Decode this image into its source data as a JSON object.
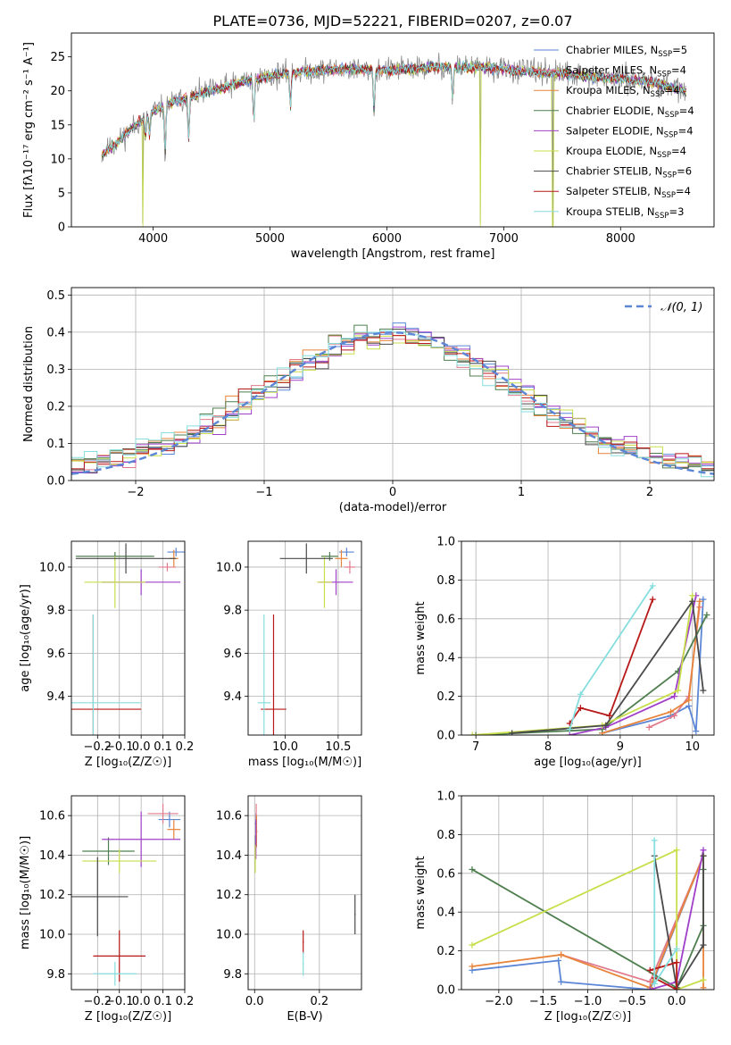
{
  "figure": {
    "title": "PLATE=0736, MJD=52221, FIBERID=0207, z=0.07"
  },
  "colors": {
    "chabrier_miles": "#5b86d6",
    "salpeter_miles": "#e07b8c",
    "kroupa_miles": "#e8843a",
    "chabrier_elodie": "#4f7f4f",
    "salpeter_elodie": "#a040c8",
    "kroupa_elodie": "#c8de4a",
    "chabrier_stelib": "#4a4a4a",
    "salpeter_stelib": "#b81818",
    "kroupa_stelib": "#86dede",
    "normal": "#5b86d6",
    "spectrum": "#8c8c8c"
  },
  "chart_data": [
    {
      "id": "spectrum",
      "type": "line",
      "xlabel": "wavelength [Angstrom, rest frame]",
      "ylabel": "Flux [fλ10⁻¹⁷ erg cm⁻² s⁻¹ A⁻¹]",
      "xlim": [
        3300,
        8800
      ],
      "ylim": [
        0,
        28.5
      ],
      "xticks": [
        4000,
        5000,
        6000,
        7000,
        8000
      ],
      "yticks": [
        0,
        5,
        10,
        15,
        20,
        25
      ],
      "legend_position": "upper right",
      "continuum": [
        [
          3550,
          10.5
        ],
        [
          3700,
          12.5
        ],
        [
          3850,
          15
        ],
        [
          4000,
          17
        ],
        [
          4200,
          18.5
        ],
        [
          4500,
          20
        ],
        [
          4800,
          21.5
        ],
        [
          5100,
          22.5
        ],
        [
          5400,
          23
        ],
        [
          5700,
          23.2
        ],
        [
          6000,
          23
        ],
        [
          6400,
          23.5
        ],
        [
          6800,
          23.5
        ],
        [
          7100,
          23
        ],
        [
          7500,
          22.5
        ],
        [
          7800,
          22
        ],
        [
          8200,
          21.5
        ],
        [
          8560,
          20
        ]
      ],
      "absorption_features": [
        [
          3934,
          3
        ],
        [
          3969,
          3
        ],
        [
          4102,
          7
        ],
        [
          4304,
          6
        ],
        [
          4861,
          6
        ],
        [
          5175,
          5
        ],
        [
          5890,
          6
        ],
        [
          6563,
          5
        ]
      ],
      "spikes": [
        [
          3910,
          0.5
        ],
        [
          6800,
          0.5
        ],
        [
          7420,
          0.2
        ]
      ],
      "series": [
        {
          "name": "Chabrier MILES, N_SSP=5",
          "name_main": "Chabrier MILES, N",
          "name_sub": "SSP",
          "name_tail": "=5",
          "color_key": "chabrier_miles"
        },
        {
          "name": "Salpeter MILES, N_SSP=4",
          "name_main": "Salpeter MILES, N",
          "name_sub": "SSP",
          "name_tail": "=4",
          "color_key": "salpeter_miles"
        },
        {
          "name": "Kroupa MILES, N_SSP=4",
          "name_main": "Kroupa MILES, N",
          "name_sub": "SSP",
          "name_tail": "=4",
          "color_key": "kroupa_miles"
        },
        {
          "name": "Chabrier ELODIE, N_SSP=4",
          "name_main": "Chabrier ELODIE, N",
          "name_sub": "SSP",
          "name_tail": "=4",
          "color_key": "chabrier_elodie"
        },
        {
          "name": "Salpeter ELODIE, N_SSP=4",
          "name_main": "Salpeter ELODIE, N",
          "name_sub": "SSP",
          "name_tail": "=4",
          "color_key": "salpeter_elodie"
        },
        {
          "name": "Kroupa ELODIE, N_SSP=4",
          "name_main": "Kroupa ELODIE, N",
          "name_sub": "SSP",
          "name_tail": "=4",
          "color_key": "kroupa_elodie"
        },
        {
          "name": "Chabrier STELIB, N_SSP=6",
          "name_main": "Chabrier STELIB, N",
          "name_sub": "SSP",
          "name_tail": "=6",
          "color_key": "chabrier_stelib"
        },
        {
          "name": "Salpeter STELIB, N_SSP=4",
          "name_main": "Salpeter STELIB, N",
          "name_sub": "SSP",
          "name_tail": "=4",
          "color_key": "salpeter_stelib"
        },
        {
          "name": "Kroupa STELIB, N_SSP=3",
          "name_main": "Kroupa STELIB, N",
          "name_sub": "SSP",
          "name_tail": "=3",
          "color_key": "kroupa_stelib"
        }
      ]
    },
    {
      "id": "residuals",
      "type": "line",
      "xlabel": "(data-model)/error",
      "ylabel": "Normed distribution",
      "xlim": [
        -2.5,
        2.5
      ],
      "ylim": [
        0,
        0.52
      ],
      "xticks": [
        -2,
        -1,
        0,
        1,
        2
      ],
      "xtick_labels": [
        "−2",
        "−1",
        "0",
        "1",
        "2"
      ],
      "yticks": [
        0,
        0.1,
        0.2,
        0.3,
        0.4,
        0.5
      ],
      "ytick_labels": [
        "0.0",
        "0.1",
        "0.2",
        "0.3",
        "0.4",
        "0.5"
      ],
      "grid": true,
      "legend_position": "upper right",
      "reference_curve": {
        "name": "𝒩(0, 1)",
        "mean": 0,
        "sigma": 1,
        "color_key": "normal"
      },
      "histogram_bin_width": 0.1
    },
    {
      "id": "age-vs-metallicity",
      "type": "scatter",
      "xlabel": "Z [log₁₀(Z/Z☉)]",
      "ylabel": "age  [log₁₀(age/yr)]",
      "xlim": [
        -0.32,
        0.2
      ],
      "ylim": [
        9.22,
        10.12
      ],
      "xticks": [
        -0.2,
        -0.1,
        0.0,
        0.1,
        0.2
      ],
      "xtick_labels": [
        "−0.2",
        "−0.1",
        "0.0",
        "0.1",
        "0.2"
      ],
      "yticks": [
        9.4,
        9.6,
        9.8,
        10.0
      ],
      "ytick_labels": [
        "9.4",
        "9.6",
        "9.8",
        "10.0"
      ],
      "grid": true,
      "points": [
        {
          "series": "chabrier_miles",
          "x": 0.16,
          "xerr": 0.04,
          "y": 10.07,
          "yerr": 0.02
        },
        {
          "series": "salpeter_miles",
          "x": 0.12,
          "xerr": 0.04,
          "y": 10.0,
          "yerr": 0.02
        },
        {
          "series": "kroupa_miles",
          "x": 0.15,
          "xerr": 0.02,
          "y": 10.04,
          "yerr": 0.04
        },
        {
          "series": "chabrier_elodie",
          "x": -0.12,
          "xerr": 0.18,
          "y": 10.05,
          "yerr": 0.02
        },
        {
          "series": "salpeter_elodie",
          "x": 0.0,
          "xerr": 0.18,
          "y": 9.93,
          "yerr": 0.06
        },
        {
          "series": "kroupa_elodie",
          "x": -0.12,
          "xerr": 0.14,
          "y": 9.93,
          "yerr": 0.12
        },
        {
          "series": "chabrier_stelib",
          "x": -0.07,
          "xerr": 0.23,
          "y": 10.04,
          "yerr": 0.07
        },
        {
          "series": "salpeter_stelib",
          "x": -0.22,
          "xerr": 0.22,
          "y": 9.34,
          "yerr": 0.44
        },
        {
          "series": "kroupa_stelib",
          "x": -0.22,
          "xerr": 0.22,
          "y": 9.37,
          "yerr": 0.41
        }
      ]
    },
    {
      "id": "age-vs-mass",
      "type": "scatter",
      "xlabel": "mass [log₁₀(M/M☉)]",
      "xlim": [
        9.65,
        10.72
      ],
      "ylim": [
        9.22,
        10.12
      ],
      "xticks": [
        10.0,
        10.5
      ],
      "xtick_labels": [
        "10.0",
        "10.5"
      ],
      "yticks": [
        9.4,
        9.6,
        9.8,
        10.0
      ],
      "ytick_labels": [
        "9.4",
        "9.6",
        "9.8",
        "10.0"
      ],
      "grid": true,
      "points": [
        {
          "series": "chabrier_miles",
          "x": 10.58,
          "xerr": 0.07,
          "y": 10.07,
          "yerr": 0.02
        },
        {
          "series": "salpeter_miles",
          "x": 10.61,
          "xerr": 0.05,
          "y": 10.0,
          "yerr": 0.03
        },
        {
          "series": "kroupa_miles",
          "x": 10.53,
          "xerr": 0.06,
          "y": 10.04,
          "yerr": 0.04
        },
        {
          "series": "chabrier_elodie",
          "x": 10.42,
          "xerr": 0.08,
          "y": 10.05,
          "yerr": 0.02
        },
        {
          "series": "salpeter_elodie",
          "x": 10.48,
          "xerr": 0.16,
          "y": 9.93,
          "yerr": 0.06
        },
        {
          "series": "kroupa_elodie",
          "x": 10.37,
          "xerr": 0.07,
          "y": 9.93,
          "yerr": 0.12
        },
        {
          "series": "chabrier_stelib",
          "x": 10.2,
          "xerr": 0.25,
          "y": 10.04,
          "yerr": 0.07
        },
        {
          "series": "salpeter_stelib",
          "x": 9.89,
          "xerr": 0.12,
          "y": 9.34,
          "yerr": 0.44
        },
        {
          "series": "kroupa_stelib",
          "x": 9.8,
          "xerr": 0.06,
          "y": 9.37,
          "yerr": 0.41
        }
      ]
    },
    {
      "id": "mass-weight-vs-age",
      "type": "line",
      "xlabel": "age  [log₁₀(age/yr)]",
      "ylabel": "mass weight",
      "xlim": [
        6.8,
        10.3
      ],
      "ylim": [
        0,
        1
      ],
      "xticks": [
        7,
        8,
        9,
        10
      ],
      "yticks": [
        0,
        0.2,
        0.4,
        0.6,
        0.8,
        1.0
      ],
      "ytick_labels": [
        "0.0",
        "0.2",
        "0.4",
        "0.6",
        "0.8",
        "1.0"
      ],
      "grid": true,
      "series": [
        {
          "color_key": "chabrier_miles",
          "x": [
            8.75,
            9.7,
            9.95,
            10.05,
            10.15
          ],
          "y": [
            0.01,
            0.1,
            0.15,
            0.02,
            0.7
          ]
        },
        {
          "color_key": "salpeter_miles",
          "x": [
            9.4,
            9.75,
            9.95,
            10.1
          ],
          "y": [
            0.04,
            0.1,
            0.2,
            0.66
          ]
        },
        {
          "color_key": "kroupa_miles",
          "x": [
            8.75,
            9.7,
            9.95,
            10.1
          ],
          "y": [
            0.01,
            0.12,
            0.18,
            0.69
          ]
        },
        {
          "color_key": "chabrier_elodie",
          "x": [
            7.0,
            8.75,
            9.8,
            10.2
          ],
          "y": [
            0.0,
            0.03,
            0.33,
            0.62
          ]
        },
        {
          "color_key": "salpeter_elodie",
          "x": [
            8.3,
            8.8,
            9.75,
            10.05
          ],
          "y": [
            0.0,
            0.04,
            0.2,
            0.72
          ]
        },
        {
          "color_key": "kroupa_elodie",
          "x": [
            6.95,
            8.75,
            9.8,
            10.0
          ],
          "y": [
            0.0,
            0.05,
            0.23,
            0.72
          ]
        },
        {
          "color_key": "chabrier_stelib",
          "x": [
            7.5,
            8.8,
            10.0,
            10.15
          ],
          "y": [
            0.01,
            0.05,
            0.69,
            0.23
          ]
        },
        {
          "color_key": "salpeter_stelib",
          "x": [
            8.3,
            8.45,
            8.85,
            9.45
          ],
          "y": [
            0.06,
            0.14,
            0.1,
            0.7
          ]
        },
        {
          "color_key": "kroupa_stelib",
          "x": [
            8.3,
            8.45,
            9.45
          ],
          "y": [
            0.03,
            0.21,
            0.77
          ]
        }
      ]
    },
    {
      "id": "mass-vs-metallicity",
      "type": "scatter",
      "xlabel": "Z [log₁₀(Z/Z☉)]",
      "ylabel": "mass [log₁₀(M/M☉)]",
      "xlim": [
        -0.32,
        0.2
      ],
      "ylim": [
        9.72,
        10.7
      ],
      "xticks": [
        -0.2,
        -0.1,
        0.0,
        0.1,
        0.2
      ],
      "xtick_labels": [
        "−0.2",
        "−0.1",
        "0.0",
        "0.1",
        "0.2"
      ],
      "yticks": [
        9.8,
        10.0,
        10.2,
        10.4,
        10.6
      ],
      "ytick_labels": [
        "9.8",
        "10.0",
        "10.2",
        "10.4",
        "10.6"
      ],
      "grid": true,
      "points": [
        {
          "series": "chabrier_miles",
          "x": 0.13,
          "xerr": 0.05,
          "y": 10.58,
          "yerr": 0.04
        },
        {
          "series": "salpeter_miles",
          "x": 0.1,
          "xerr": 0.07,
          "y": 10.61,
          "yerr": 0.05
        },
        {
          "series": "kroupa_miles",
          "x": 0.15,
          "xerr": 0.03,
          "y": 10.53,
          "yerr": 0.05
        },
        {
          "series": "chabrier_elodie",
          "x": -0.15,
          "xerr": 0.12,
          "y": 10.42,
          "yerr": 0.07
        },
        {
          "series": "salpeter_elodie",
          "x": 0.0,
          "xerr": 0.18,
          "y": 10.48,
          "yerr": 0.14
        },
        {
          "series": "kroupa_elodie",
          "x": -0.1,
          "xerr": 0.17,
          "y": 10.37,
          "yerr": 0.06
        },
        {
          "series": "chabrier_stelib",
          "x": -0.2,
          "xerr": 0.14,
          "y": 10.19,
          "yerr": 0.2
        },
        {
          "series": "salpeter_stelib",
          "x": -0.1,
          "xerr": 0.12,
          "y": 9.89,
          "yerr": 0.13
        },
        {
          "series": "kroupa_stelib",
          "x": -0.12,
          "xerr": 0.1,
          "y": 9.8,
          "yerr": 0.06
        }
      ]
    },
    {
      "id": "mass-vs-extinction",
      "type": "scatter",
      "xlabel": "E(B-V)",
      "xlim": [
        -0.02,
        0.33
      ],
      "ylim": [
        9.72,
        10.7
      ],
      "xticks": [
        0.0,
        0.2
      ],
      "xtick_labels": [
        "0.0",
        "0.2"
      ],
      "yticks": [
        9.8,
        10.0,
        10.2,
        10.4,
        10.6
      ],
      "ytick_labels": [
        "9.8",
        "10.0",
        "10.2",
        "10.4",
        "10.6"
      ],
      "grid": true,
      "points": [
        {
          "series": "chabrier_miles",
          "x": 0.004,
          "xerr": 0.003,
          "y": 10.56,
          "yerr": 0.05
        },
        {
          "series": "salpeter_miles",
          "x": 0.005,
          "xerr": 0.003,
          "y": 10.6,
          "yerr": 0.06
        },
        {
          "series": "kroupa_miles",
          "x": 0.006,
          "xerr": 0.003,
          "y": 10.52,
          "yerr": 0.08
        },
        {
          "series": "chabrier_elodie",
          "x": 0.003,
          "xerr": 0.002,
          "y": 10.44,
          "yerr": 0.06
        },
        {
          "series": "salpeter_elodie",
          "x": 0.004,
          "xerr": 0.002,
          "y": 10.48,
          "yerr": 0.1
        },
        {
          "series": "kroupa_elodie",
          "x": 0.002,
          "xerr": 0.002,
          "y": 10.38,
          "yerr": 0.07
        },
        {
          "series": "chabrier_stelib",
          "x": 0.31,
          "xerr": 0.002,
          "y": 10.1,
          "yerr": 0.1
        },
        {
          "series": "salpeter_stelib",
          "x": 0.15,
          "xerr": 0.002,
          "y": 9.96,
          "yerr": 0.06
        },
        {
          "series": "kroupa_stelib",
          "x": 0.15,
          "xerr": 0.002,
          "y": 9.85,
          "yerr": 0.06
        }
      ]
    },
    {
      "id": "mass-weight-vs-metallicity",
      "type": "line",
      "xlabel": "Z [log₁₀(Z/Z☉)]",
      "ylabel": "mass weight",
      "xlim": [
        -2.42,
        0.42
      ],
      "ylim": [
        0,
        1
      ],
      "xticks": [
        -2.0,
        -1.5,
        -1.0,
        -0.5,
        0.0
      ],
      "xtick_labels": [
        "−2.0",
        "−1.5",
        "−1.0",
        "−0.5",
        "0.0"
      ],
      "yticks": [
        0,
        0.2,
        0.4,
        0.6,
        0.8,
        1.0
      ],
      "ytick_labels": [
        "0.0",
        "0.2",
        "0.4",
        "0.6",
        "0.8",
        "1.0"
      ],
      "grid": true,
      "series": [
        {
          "color_key": "chabrier_miles",
          "x": [
            -2.3,
            -1.33,
            -1.3,
            -0.3,
            0.3
          ],
          "y": [
            0.1,
            0.15,
            0.04,
            0.0,
            0.69
          ]
        },
        {
          "color_key": "salpeter_miles",
          "x": [
            -1.3,
            -0.3,
            0.3
          ],
          "y": [
            0.18,
            0.04,
            0.69
          ]
        },
        {
          "color_key": "kroupa_miles",
          "x": [
            -2.3,
            -1.3,
            -0.3,
            0.3,
            0.3
          ],
          "y": [
            0.12,
            0.18,
            0.01,
            0.69,
            0.01
          ]
        },
        {
          "color_key": "chabrier_elodie",
          "x": [
            -2.3,
            0.0,
            0.3,
            0.3
          ],
          "y": [
            0.62,
            0.01,
            0.33,
            0.62
          ]
        },
        {
          "color_key": "salpeter_elodie",
          "x": [
            -0.3,
            0.0,
            0.3
          ],
          "y": [
            0.0,
            0.04,
            0.72
          ]
        },
        {
          "color_key": "kroupa_elodie",
          "x": [
            -2.3,
            0.0,
            0.0,
            0.3
          ],
          "y": [
            0.23,
            0.72,
            0.0,
            0.05
          ]
        },
        {
          "color_key": "chabrier_stelib",
          "x": [
            -0.25,
            0.0,
            0.3,
            0.3
          ],
          "y": [
            0.69,
            0.01,
            0.23,
            0.69
          ]
        },
        {
          "color_key": "salpeter_stelib",
          "x": [
            -0.3,
            0.0,
            0.0,
            -0.25
          ],
          "y": [
            0.1,
            0.14,
            0.0,
            0.06
          ]
        },
        {
          "color_key": "kroupa_stelib",
          "x": [
            -0.25,
            -0.25,
            0.0
          ],
          "y": [
            0.77,
            0.03,
            0.21
          ]
        }
      ]
    }
  ]
}
